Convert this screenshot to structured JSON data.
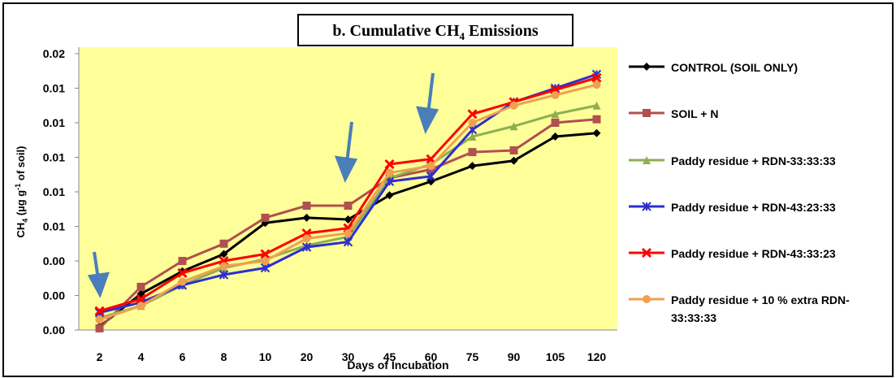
{
  "chart_data": {
    "type": "line",
    "title_parts": [
      "b. Cumulative CH",
      "4",
      " Emissions"
    ],
    "y_label_parts": [
      "CH",
      "4",
      " (µg g",
      "-1",
      " of soil)"
    ],
    "x_label": "Days of Incubation",
    "categories": [
      "2",
      "4",
      "6",
      "8",
      "10",
      "20",
      "30",
      "45",
      "60",
      "75",
      "90",
      "105",
      "120"
    ],
    "ylim": [
      0,
      0.016
    ],
    "yticks": [
      {
        "value": 0,
        "label": "0.00"
      },
      {
        "value": 0.002,
        "label": "0.00"
      },
      {
        "value": 0.004,
        "label": "0.00"
      },
      {
        "value": 0.006,
        "label": "0.01"
      },
      {
        "value": 0.008,
        "label": "0.01"
      },
      {
        "value": 0.01,
        "label": "0.01"
      },
      {
        "value": 0.012,
        "label": "0.01"
      },
      {
        "value": 0.014,
        "label": "0.01"
      },
      {
        "value": 0.016,
        "label": "0.02"
      }
    ],
    "legend": "right",
    "series": [
      {
        "name": "CONTROL  (SOIL ONLY)",
        "color": "#000000",
        "marker": "diamond",
        "values": [
          0.0002,
          0.0021,
          0.0034,
          0.0044,
          0.0062,
          0.0065,
          0.0064,
          0.0078,
          0.0086,
          0.0095,
          0.0098,
          0.0112,
          0.0114
        ]
      },
      {
        "name": "SOIL + N",
        "color": "#b05050",
        "marker": "square",
        "values": [
          0.0001,
          0.0025,
          0.004,
          0.005,
          0.0065,
          0.0072,
          0.0072,
          0.0088,
          0.0093,
          0.0103,
          0.0104,
          0.012,
          0.0122
        ]
      },
      {
        "name": "Paddy residue + RDN-33:33:33",
        "color": "#8cb050",
        "marker": "triangle",
        "values": [
          0.0007,
          0.0014,
          0.0026,
          0.0036,
          0.0041,
          0.0049,
          0.0054,
          0.0088,
          0.0096,
          0.0112,
          0.0118,
          0.0125,
          0.013
        ]
      },
      {
        "name": "Paddy residue + RDN-43:23:33",
        "color": "#2e2ed0",
        "marker": "star",
        "values": [
          0.001,
          0.0016,
          0.0026,
          0.0032,
          0.0036,
          0.0048,
          0.0051,
          0.0086,
          0.0089,
          0.0116,
          0.0132,
          0.014,
          0.0148
        ]
      },
      {
        "name": "Paddy residue + RDN-43:33:23",
        "color": "#ff0000",
        "marker": "x",
        "values": [
          0.0011,
          0.0018,
          0.0033,
          0.004,
          0.0044,
          0.0056,
          0.0059,
          0.0096,
          0.0099,
          0.0125,
          0.0132,
          0.0139,
          0.0146
        ]
      },
      {
        "name": "Paddy residue + 10 % extra RDN-33:33:33",
        "color": "#f0a050",
        "marker": "circle",
        "values": [
          0.0006,
          0.0014,
          0.0028,
          0.0037,
          0.004,
          0.0053,
          0.0056,
          0.0091,
          0.0095,
          0.012,
          0.013,
          0.0136,
          0.0142
        ]
      }
    ]
  }
}
